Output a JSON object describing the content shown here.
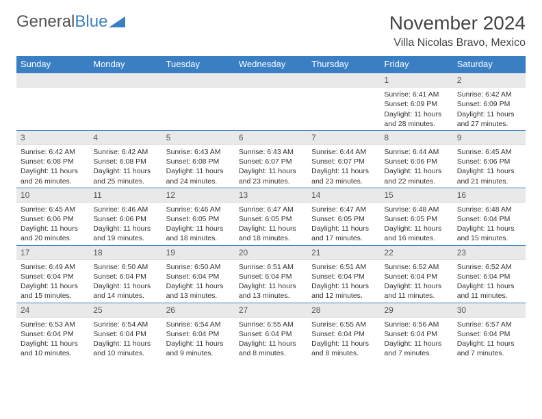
{
  "logo": {
    "textA": "General",
    "textB": "Blue"
  },
  "title": "November 2024",
  "location": "Villa Nicolas Bravo, Mexico",
  "colors": {
    "accent": "#3a7fc4",
    "headerBg": "#3a7fc4",
    "dayNumBg": "#e9e9e9"
  },
  "dayHeaders": [
    "Sunday",
    "Monday",
    "Tuesday",
    "Wednesday",
    "Thursday",
    "Friday",
    "Saturday"
  ],
  "weeks": [
    [
      {
        "n": "",
        "sr": "",
        "ss": "",
        "dl": ""
      },
      {
        "n": "",
        "sr": "",
        "ss": "",
        "dl": ""
      },
      {
        "n": "",
        "sr": "",
        "ss": "",
        "dl": ""
      },
      {
        "n": "",
        "sr": "",
        "ss": "",
        "dl": ""
      },
      {
        "n": "",
        "sr": "",
        "ss": "",
        "dl": ""
      },
      {
        "n": "1",
        "sr": "Sunrise: 6:41 AM",
        "ss": "Sunset: 6:09 PM",
        "dl": "Daylight: 11 hours and 28 minutes."
      },
      {
        "n": "2",
        "sr": "Sunrise: 6:42 AM",
        "ss": "Sunset: 6:09 PM",
        "dl": "Daylight: 11 hours and 27 minutes."
      }
    ],
    [
      {
        "n": "3",
        "sr": "Sunrise: 6:42 AM",
        "ss": "Sunset: 6:08 PM",
        "dl": "Daylight: 11 hours and 26 minutes."
      },
      {
        "n": "4",
        "sr": "Sunrise: 6:42 AM",
        "ss": "Sunset: 6:08 PM",
        "dl": "Daylight: 11 hours and 25 minutes."
      },
      {
        "n": "5",
        "sr": "Sunrise: 6:43 AM",
        "ss": "Sunset: 6:08 PM",
        "dl": "Daylight: 11 hours and 24 minutes."
      },
      {
        "n": "6",
        "sr": "Sunrise: 6:43 AM",
        "ss": "Sunset: 6:07 PM",
        "dl": "Daylight: 11 hours and 23 minutes."
      },
      {
        "n": "7",
        "sr": "Sunrise: 6:44 AM",
        "ss": "Sunset: 6:07 PM",
        "dl": "Daylight: 11 hours and 23 minutes."
      },
      {
        "n": "8",
        "sr": "Sunrise: 6:44 AM",
        "ss": "Sunset: 6:06 PM",
        "dl": "Daylight: 11 hours and 22 minutes."
      },
      {
        "n": "9",
        "sr": "Sunrise: 6:45 AM",
        "ss": "Sunset: 6:06 PM",
        "dl": "Daylight: 11 hours and 21 minutes."
      }
    ],
    [
      {
        "n": "10",
        "sr": "Sunrise: 6:45 AM",
        "ss": "Sunset: 6:06 PM",
        "dl": "Daylight: 11 hours and 20 minutes."
      },
      {
        "n": "11",
        "sr": "Sunrise: 6:46 AM",
        "ss": "Sunset: 6:06 PM",
        "dl": "Daylight: 11 hours and 19 minutes."
      },
      {
        "n": "12",
        "sr": "Sunrise: 6:46 AM",
        "ss": "Sunset: 6:05 PM",
        "dl": "Daylight: 11 hours and 18 minutes."
      },
      {
        "n": "13",
        "sr": "Sunrise: 6:47 AM",
        "ss": "Sunset: 6:05 PM",
        "dl": "Daylight: 11 hours and 18 minutes."
      },
      {
        "n": "14",
        "sr": "Sunrise: 6:47 AM",
        "ss": "Sunset: 6:05 PM",
        "dl": "Daylight: 11 hours and 17 minutes."
      },
      {
        "n": "15",
        "sr": "Sunrise: 6:48 AM",
        "ss": "Sunset: 6:05 PM",
        "dl": "Daylight: 11 hours and 16 minutes."
      },
      {
        "n": "16",
        "sr": "Sunrise: 6:48 AM",
        "ss": "Sunset: 6:04 PM",
        "dl": "Daylight: 11 hours and 15 minutes."
      }
    ],
    [
      {
        "n": "17",
        "sr": "Sunrise: 6:49 AM",
        "ss": "Sunset: 6:04 PM",
        "dl": "Daylight: 11 hours and 15 minutes."
      },
      {
        "n": "18",
        "sr": "Sunrise: 6:50 AM",
        "ss": "Sunset: 6:04 PM",
        "dl": "Daylight: 11 hours and 14 minutes."
      },
      {
        "n": "19",
        "sr": "Sunrise: 6:50 AM",
        "ss": "Sunset: 6:04 PM",
        "dl": "Daylight: 11 hours and 13 minutes."
      },
      {
        "n": "20",
        "sr": "Sunrise: 6:51 AM",
        "ss": "Sunset: 6:04 PM",
        "dl": "Daylight: 11 hours and 13 minutes."
      },
      {
        "n": "21",
        "sr": "Sunrise: 6:51 AM",
        "ss": "Sunset: 6:04 PM",
        "dl": "Daylight: 11 hours and 12 minutes."
      },
      {
        "n": "22",
        "sr": "Sunrise: 6:52 AM",
        "ss": "Sunset: 6:04 PM",
        "dl": "Daylight: 11 hours and 11 minutes."
      },
      {
        "n": "23",
        "sr": "Sunrise: 6:52 AM",
        "ss": "Sunset: 6:04 PM",
        "dl": "Daylight: 11 hours and 11 minutes."
      }
    ],
    [
      {
        "n": "24",
        "sr": "Sunrise: 6:53 AM",
        "ss": "Sunset: 6:04 PM",
        "dl": "Daylight: 11 hours and 10 minutes."
      },
      {
        "n": "25",
        "sr": "Sunrise: 6:54 AM",
        "ss": "Sunset: 6:04 PM",
        "dl": "Daylight: 11 hours and 10 minutes."
      },
      {
        "n": "26",
        "sr": "Sunrise: 6:54 AM",
        "ss": "Sunset: 6:04 PM",
        "dl": "Daylight: 11 hours and 9 minutes."
      },
      {
        "n": "27",
        "sr": "Sunrise: 6:55 AM",
        "ss": "Sunset: 6:04 PM",
        "dl": "Daylight: 11 hours and 8 minutes."
      },
      {
        "n": "28",
        "sr": "Sunrise: 6:55 AM",
        "ss": "Sunset: 6:04 PM",
        "dl": "Daylight: 11 hours and 8 minutes."
      },
      {
        "n": "29",
        "sr": "Sunrise: 6:56 AM",
        "ss": "Sunset: 6:04 PM",
        "dl": "Daylight: 11 hours and 7 minutes."
      },
      {
        "n": "30",
        "sr": "Sunrise: 6:57 AM",
        "ss": "Sunset: 6:04 PM",
        "dl": "Daylight: 11 hours and 7 minutes."
      }
    ]
  ]
}
